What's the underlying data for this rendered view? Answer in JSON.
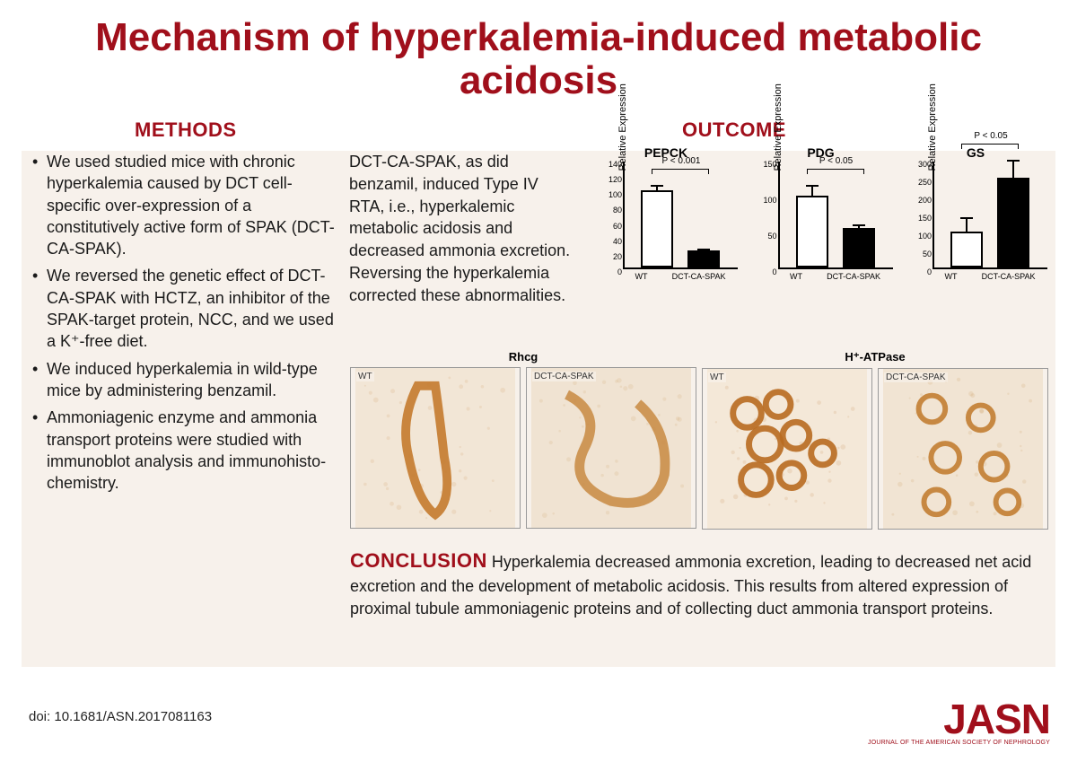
{
  "title": "Mechanism of hyperkalemia-induced metabolic acidosis",
  "title_color": "#a00f1b",
  "title_fontsize": 44,
  "panel_bg": "#f7f1eb",
  "section_labels": {
    "methods": "METHODS",
    "outcome": "OUTCOME",
    "conclusion": "CONCLUSION",
    "color": "#a00f1b",
    "fontsize": 22
  },
  "body_fontsize": 18,
  "body_color": "#1a1a1a",
  "methods_bullets": [
    "We used studied mice with chronic hyperkalemia caused by DCT cell-specific over-expression of a constitutively active form of SPAK (DCT-CA-SPAK).",
    "We reversed the genetic effect of DCT-CA-SPAK with HCTZ, an inhibitor of the SPAK-target protein, NCC, and we used a K⁺-free diet.",
    "We induced hyperkalemia in wild-type mice by administering benzamil.",
    "Ammoniagenic enzyme and ammonia transport proteins were studied with immunoblot analysis and immunohisto-chemistry."
  ],
  "mid_text": "DCT-CA-SPAK, as did benzamil, induced Type IV RTA, i.e., hyperkalemic metabolic acidosis and decreased ammonia excretion.  Reversing the hyperkalemia corrected these abnormalities.",
  "charts": [
    {
      "title": "PEPCK",
      "ylabel": "Relative Expression",
      "ymax": 140,
      "yticks": [
        0,
        20,
        40,
        60,
        80,
        100,
        120,
        140
      ],
      "bars": [
        {
          "label": "WT",
          "value": 100,
          "err": 10,
          "fill": "#ffffff"
        },
        {
          "label": "DCT-CA-SPAK",
          "value": 22,
          "err": 5,
          "fill": "#000000"
        }
      ],
      "pvalue": "P < 0.001"
    },
    {
      "title": "PDG",
      "ylabel": "Relative Expression",
      "ymax": 150,
      "yticks": [
        0,
        50,
        100,
        150
      ],
      "bars": [
        {
          "label": "WT",
          "value": 100,
          "err": 18,
          "fill": "#ffffff"
        },
        {
          "label": "DCT-CA-SPAK",
          "value": 55,
          "err": 8,
          "fill": "#000000"
        }
      ],
      "pvalue": "P < 0.05"
    },
    {
      "title": "GS",
      "ylabel": "Relative Expression",
      "ymax": 300,
      "yticks": [
        0,
        50,
        100,
        150,
        200,
        250,
        300
      ],
      "bars": [
        {
          "label": "WT",
          "value": 100,
          "err": 45,
          "fill": "#ffffff"
        },
        {
          "label": "DCT-CA-SPAK",
          "value": 250,
          "err": 55,
          "fill": "#000000"
        }
      ],
      "pvalue": "P < 0.05"
    }
  ],
  "histology": [
    {
      "title": "Rhcg",
      "panels": [
        {
          "label": "WT",
          "stain_color": "#c47a2e",
          "bg": "#f2e6d6",
          "shape": "tubule-long"
        },
        {
          "label": "DCT-CA-SPAK",
          "stain_color": "#c88a42",
          "bg": "#f0e3d2",
          "shape": "tubule-wavy"
        }
      ]
    },
    {
      "title": "H⁺-ATPase",
      "panels": [
        {
          "label": "WT",
          "stain_color": "#b86a20",
          "bg": "#f4e8d8",
          "shape": "cells-cluster"
        },
        {
          "label": "DCT-CA-SPAK",
          "stain_color": "#c07828",
          "bg": "#f1e4d3",
          "shape": "cells-sparse"
        }
      ]
    }
  ],
  "conclusion_text": "Hyperkalemia decreased ammonia excretion, leading to decreased net acid excretion and the development of metabolic acidosis.  This results from altered expression of proximal tubule ammoniagenic proteins and of collecting duct ammonia transport proteins.",
  "doi": "doi: 10.1681/ASN.2017081163",
  "journal": {
    "logo": "JASN",
    "subtitle": "JOURNAL OF THE AMERICAN SOCIETY OF NEPHROLOGY",
    "color": "#a00f1b",
    "logo_fontsize": 46
  }
}
